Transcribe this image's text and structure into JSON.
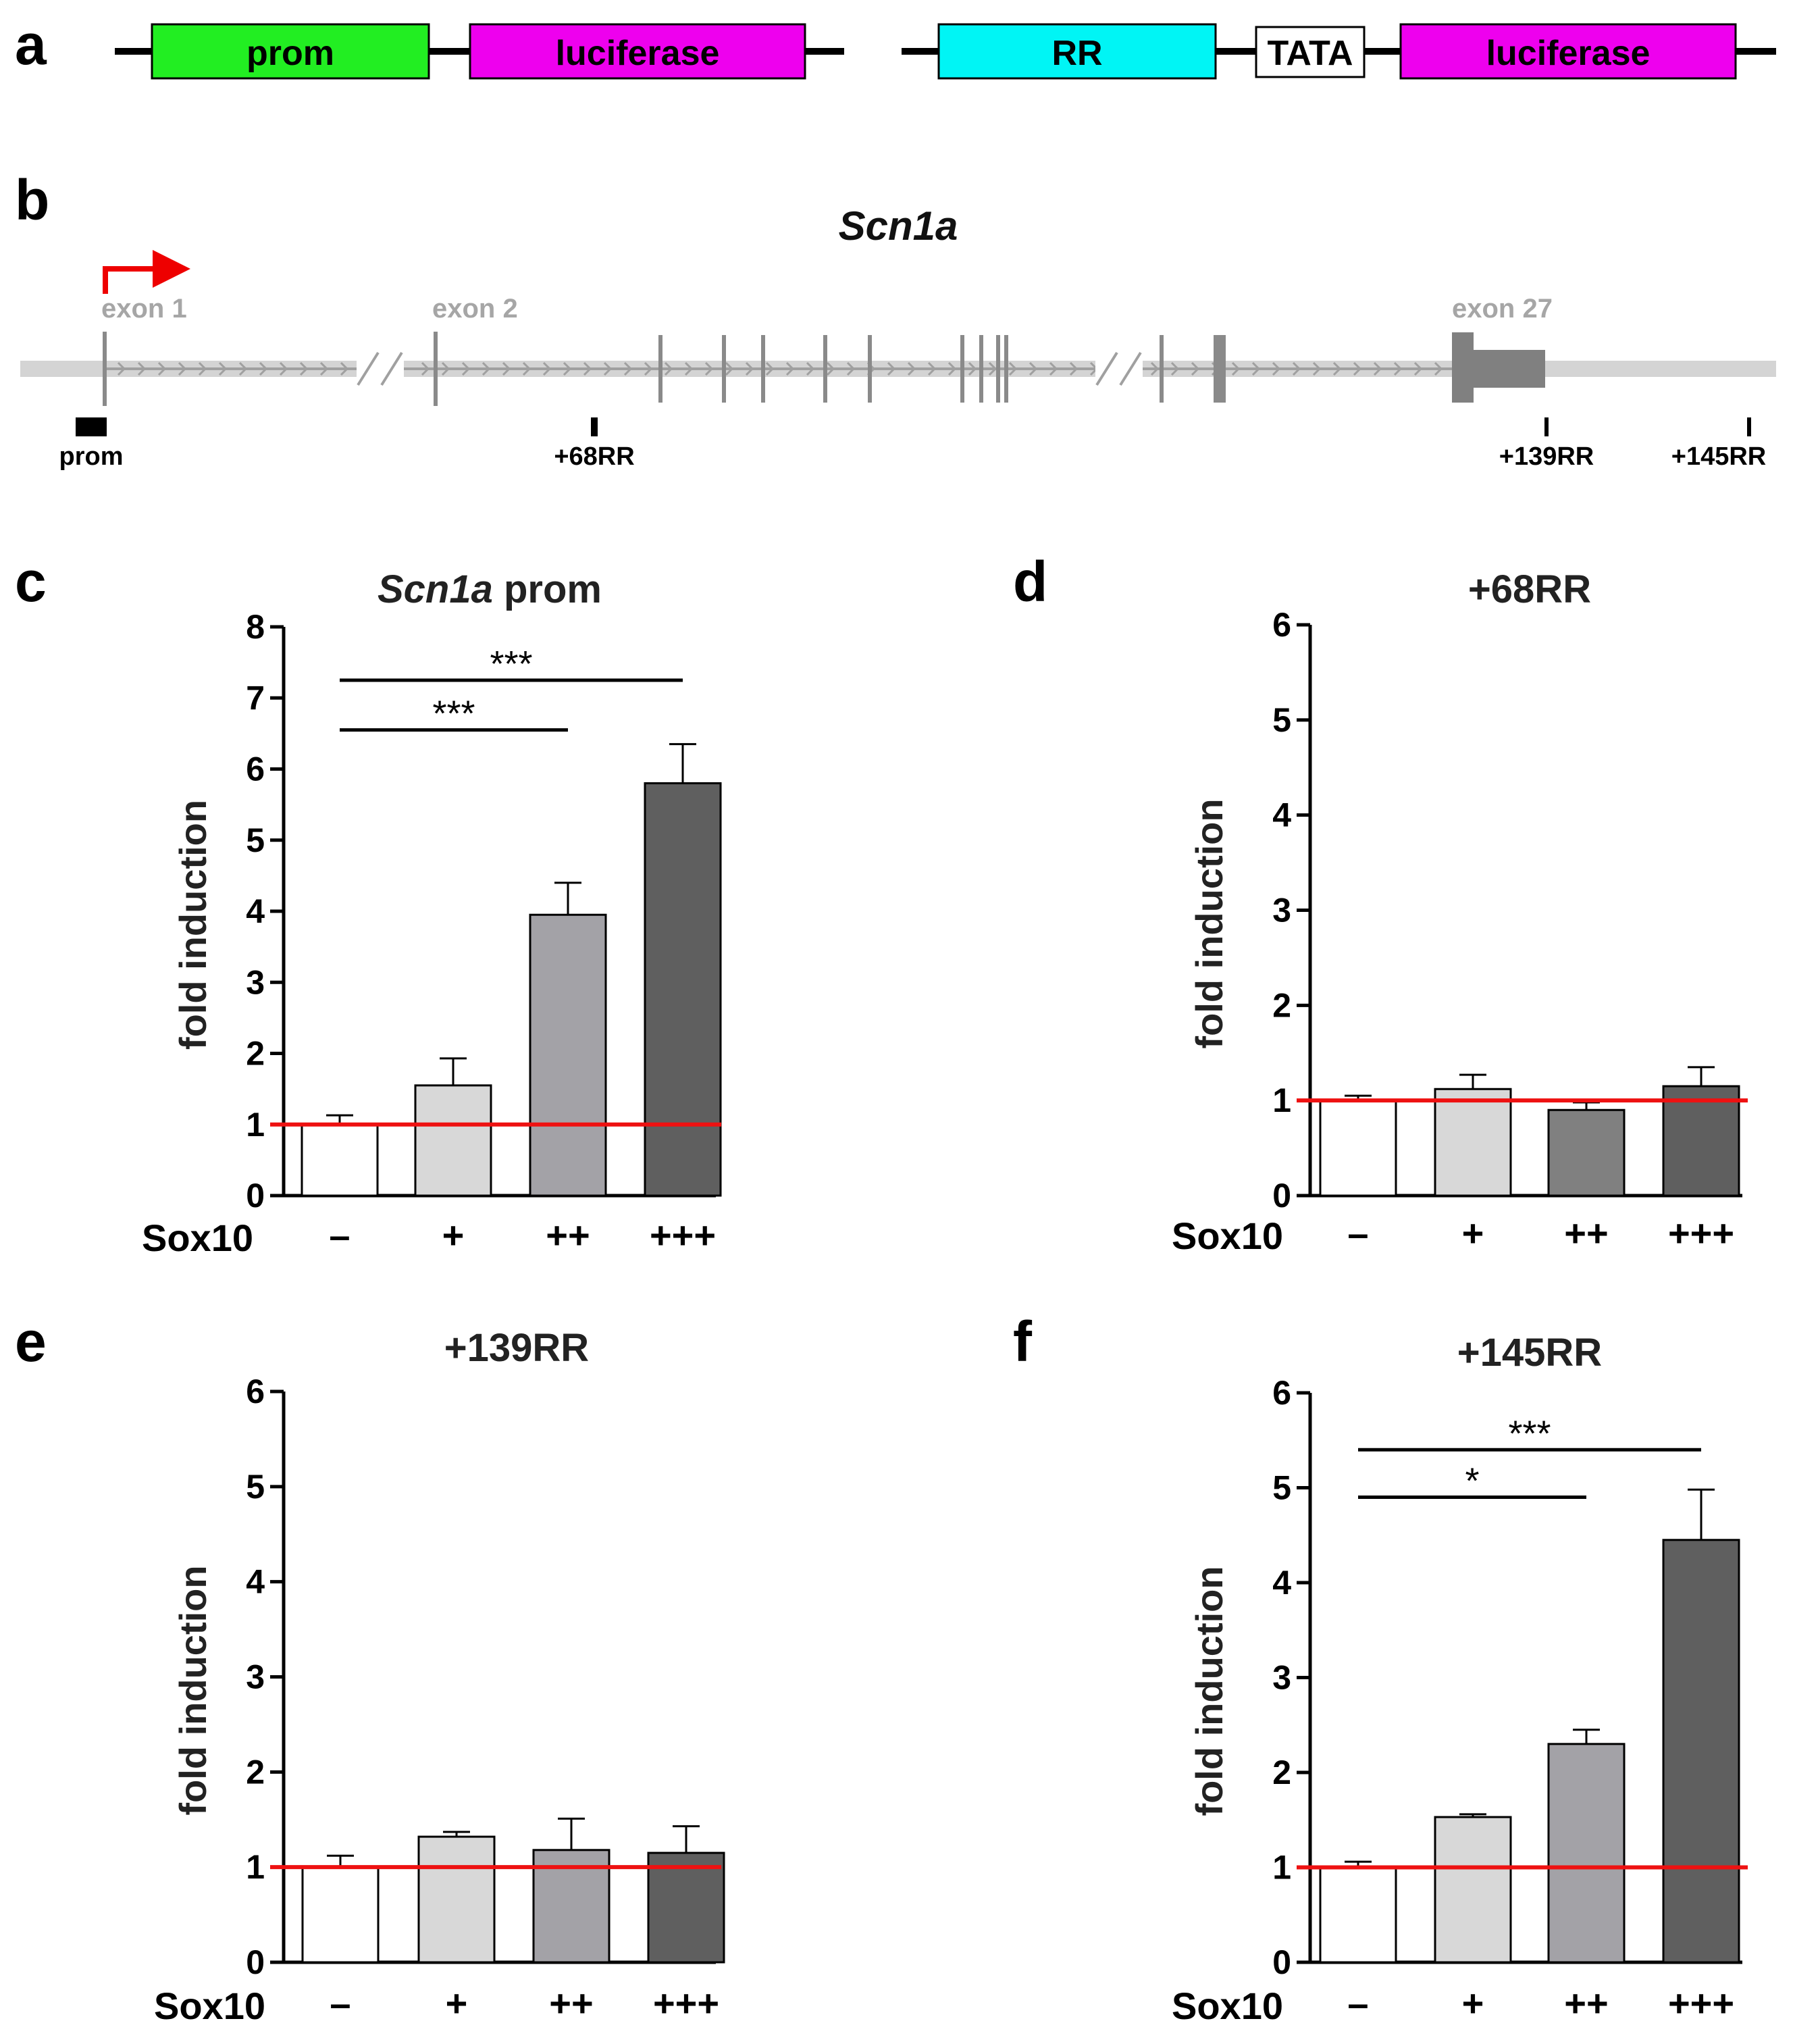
{
  "panel_a": {
    "letter": "a",
    "construct1": [
      "prom",
      "luciferase"
    ],
    "construct2": [
      "RR",
      "TATA",
      "luciferase"
    ],
    "colors": {
      "prom": "#22ee22",
      "luciferase": "#ee00ee",
      "RR": "#00f5f5",
      "TATA": "#ffffff"
    }
  },
  "panel_b": {
    "letter": "b",
    "gene": "Scn1a",
    "exons": [
      "exon 1",
      "exon 2",
      "exon 27"
    ],
    "regions": [
      "prom",
      "+68RR",
      "+139RR",
      "+145RR"
    ]
  },
  "chart_data": [
    {
      "panel": "c",
      "type": "bar",
      "title_italic": "Scn1a",
      "title_rest": " prom",
      "ylabel": "fold induction",
      "xlabel": "Sox10",
      "categories": [
        "–",
        "+",
        "++",
        "+++"
      ],
      "values": [
        1.0,
        1.55,
        3.95,
        5.8
      ],
      "errors": [
        0.13,
        0.38,
        0.45,
        0.55
      ],
      "ylim": [
        0,
        8
      ],
      "yticks": [
        "0",
        "1",
        "2",
        "3",
        "4",
        "5",
        "6",
        "7",
        "8"
      ],
      "reference_line": 1,
      "bar_colors": [
        "#ffffff",
        "#d8d8d8",
        "#a3a2a7",
        "#5f5f5f"
      ],
      "significance": [
        {
          "label": "***",
          "from": 0,
          "to": 3,
          "level": 7.25
        },
        {
          "label": "***",
          "from": 0,
          "to": 2,
          "level": 6.55
        }
      ]
    },
    {
      "panel": "d",
      "type": "bar",
      "title_italic": "",
      "title_rest": "+68RR",
      "ylabel": "fold induction",
      "xlabel": "Sox10",
      "categories": [
        "–",
        "+",
        "++",
        "+++"
      ],
      "values": [
        1.0,
        1.12,
        0.9,
        1.15
      ],
      "errors": [
        0.05,
        0.15,
        0.08,
        0.2
      ],
      "ylim": [
        0,
        6
      ],
      "yticks": [
        "0",
        "1",
        "2",
        "3",
        "4",
        "5",
        "6"
      ],
      "reference_line": 1,
      "bar_colors": [
        "#ffffff",
        "#d8d8d8",
        "#808080",
        "#5f5f5f"
      ],
      "significance": []
    },
    {
      "panel": "e",
      "type": "bar",
      "title_italic": "",
      "title_rest": "+139RR",
      "ylabel": "fold induction",
      "xlabel": "Sox10",
      "categories": [
        "–",
        "+",
        "++",
        "+++"
      ],
      "values": [
        1.0,
        1.32,
        1.18,
        1.15
      ],
      "errors": [
        0.12,
        0.05,
        0.33,
        0.28
      ],
      "ylim": [
        0,
        6
      ],
      "yticks": [
        "0",
        "1",
        "2",
        "3",
        "4",
        "5",
        "6"
      ],
      "reference_line": 1,
      "bar_colors": [
        "#ffffff",
        "#d8d8d8",
        "#a3a2a7",
        "#5f5f5f"
      ],
      "significance": []
    },
    {
      "panel": "f",
      "type": "bar",
      "title_italic": "",
      "title_rest": "+145RR",
      "ylabel": "fold induction",
      "xlabel": "Sox10",
      "categories": [
        "–",
        "+",
        "++",
        "+++"
      ],
      "values": [
        1.0,
        1.53,
        2.3,
        4.45
      ],
      "errors": [
        0.06,
        0.03,
        0.15,
        0.53
      ],
      "ylim": [
        0,
        6
      ],
      "yticks": [
        "0",
        "1",
        "2",
        "3",
        "4",
        "5",
        "6"
      ],
      "reference_line": 1,
      "bar_colors": [
        "#ffffff",
        "#d8d8d8",
        "#a3a2a7",
        "#5f5f5f"
      ],
      "significance": [
        {
          "label": "***",
          "from": 0,
          "to": 3,
          "level": 5.4
        },
        {
          "label": "*",
          "from": 0,
          "to": 2,
          "level": 4.9
        }
      ]
    }
  ]
}
